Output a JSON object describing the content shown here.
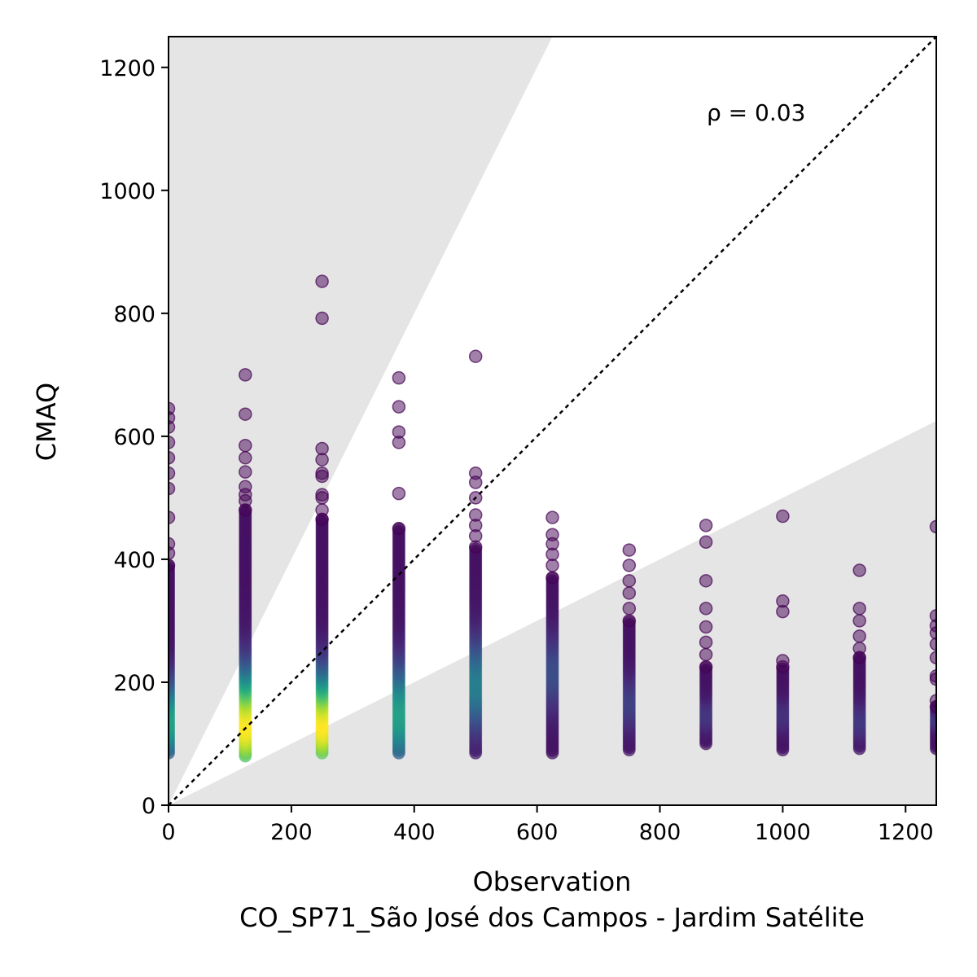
{
  "chart_data": {
    "type": "scatter",
    "xlabel": "Observation",
    "subtitle": "CO_SP71_São José dos Campos - Jardim Satélite",
    "ylabel": "CMAQ",
    "xlim": [
      0,
      1250
    ],
    "ylim": [
      0,
      1250
    ],
    "xticks": [
      "0",
      "200",
      "400",
      "600",
      "800",
      "1000",
      "1200"
    ],
    "yticks": [
      "0",
      "200",
      "400",
      "600",
      "800",
      "1000",
      "1200"
    ],
    "annotation": "ρ = 0.03",
    "reference_line": "1:1 dotted diagonal",
    "shaded_regions": "factor-of-2 bands outside grey (y > 2x and y < 0.5x)",
    "colormap": "viridis (point density)",
    "columns": [
      {
        "x": 0,
        "ymin": 85,
        "ymax": 645,
        "outliers": [
          645,
          630,
          615,
          590,
          565,
          540,
          515,
          468,
          425,
          410,
          390
        ],
        "peak_y": 140
      },
      {
        "x": 125,
        "ymin": 80,
        "ymax": 700,
        "outliers": [
          700,
          636,
          585,
          565,
          542,
          518,
          505,
          495,
          480
        ],
        "peak_y": 130
      },
      {
        "x": 250,
        "ymin": 85,
        "ymax": 852,
        "outliers": [
          852,
          792,
          580,
          562,
          540,
          535,
          505,
          500,
          480,
          465
        ],
        "peak_y": 130
      },
      {
        "x": 375,
        "ymin": 85,
        "ymax": 695,
        "outliers": [
          695,
          648,
          607,
          590,
          507,
          450
        ],
        "peak_y": 150
      },
      {
        "x": 500,
        "ymin": 85,
        "ymax": 730,
        "outliers": [
          730,
          540,
          525,
          500,
          472,
          455,
          438,
          420
        ],
        "peak_y": 200
      },
      {
        "x": 625,
        "ymin": 85,
        "ymax": 468,
        "outliers": [
          468,
          440,
          425,
          408,
          390,
          370
        ],
        "peak_y": 220
      },
      {
        "x": 750,
        "ymin": 90,
        "ymax": 415,
        "outliers": [
          415,
          390,
          365,
          345,
          320,
          300
        ],
        "peak_y": 170
      },
      {
        "x": 875,
        "ymin": 100,
        "ymax": 455,
        "outliers": [
          455,
          428,
          365,
          320,
          290,
          265,
          245,
          225
        ],
        "peak_y": 150
      },
      {
        "x": 1000,
        "ymin": 90,
        "ymax": 470,
        "outliers": [
          470,
          332,
          315,
          235,
          225
        ],
        "peak_y": 150
      },
      {
        "x": 1125,
        "ymin": 92,
        "ymax": 382,
        "outliers": [
          382,
          320,
          300,
          275,
          255,
          240
        ],
        "peak_y": 140
      },
      {
        "x": 1250,
        "ymin": 92,
        "ymax": 453,
        "outliers": [
          453,
          308,
          292,
          280,
          262,
          240,
          210,
          205,
          170,
          160
        ],
        "peak_y": 140
      }
    ]
  }
}
